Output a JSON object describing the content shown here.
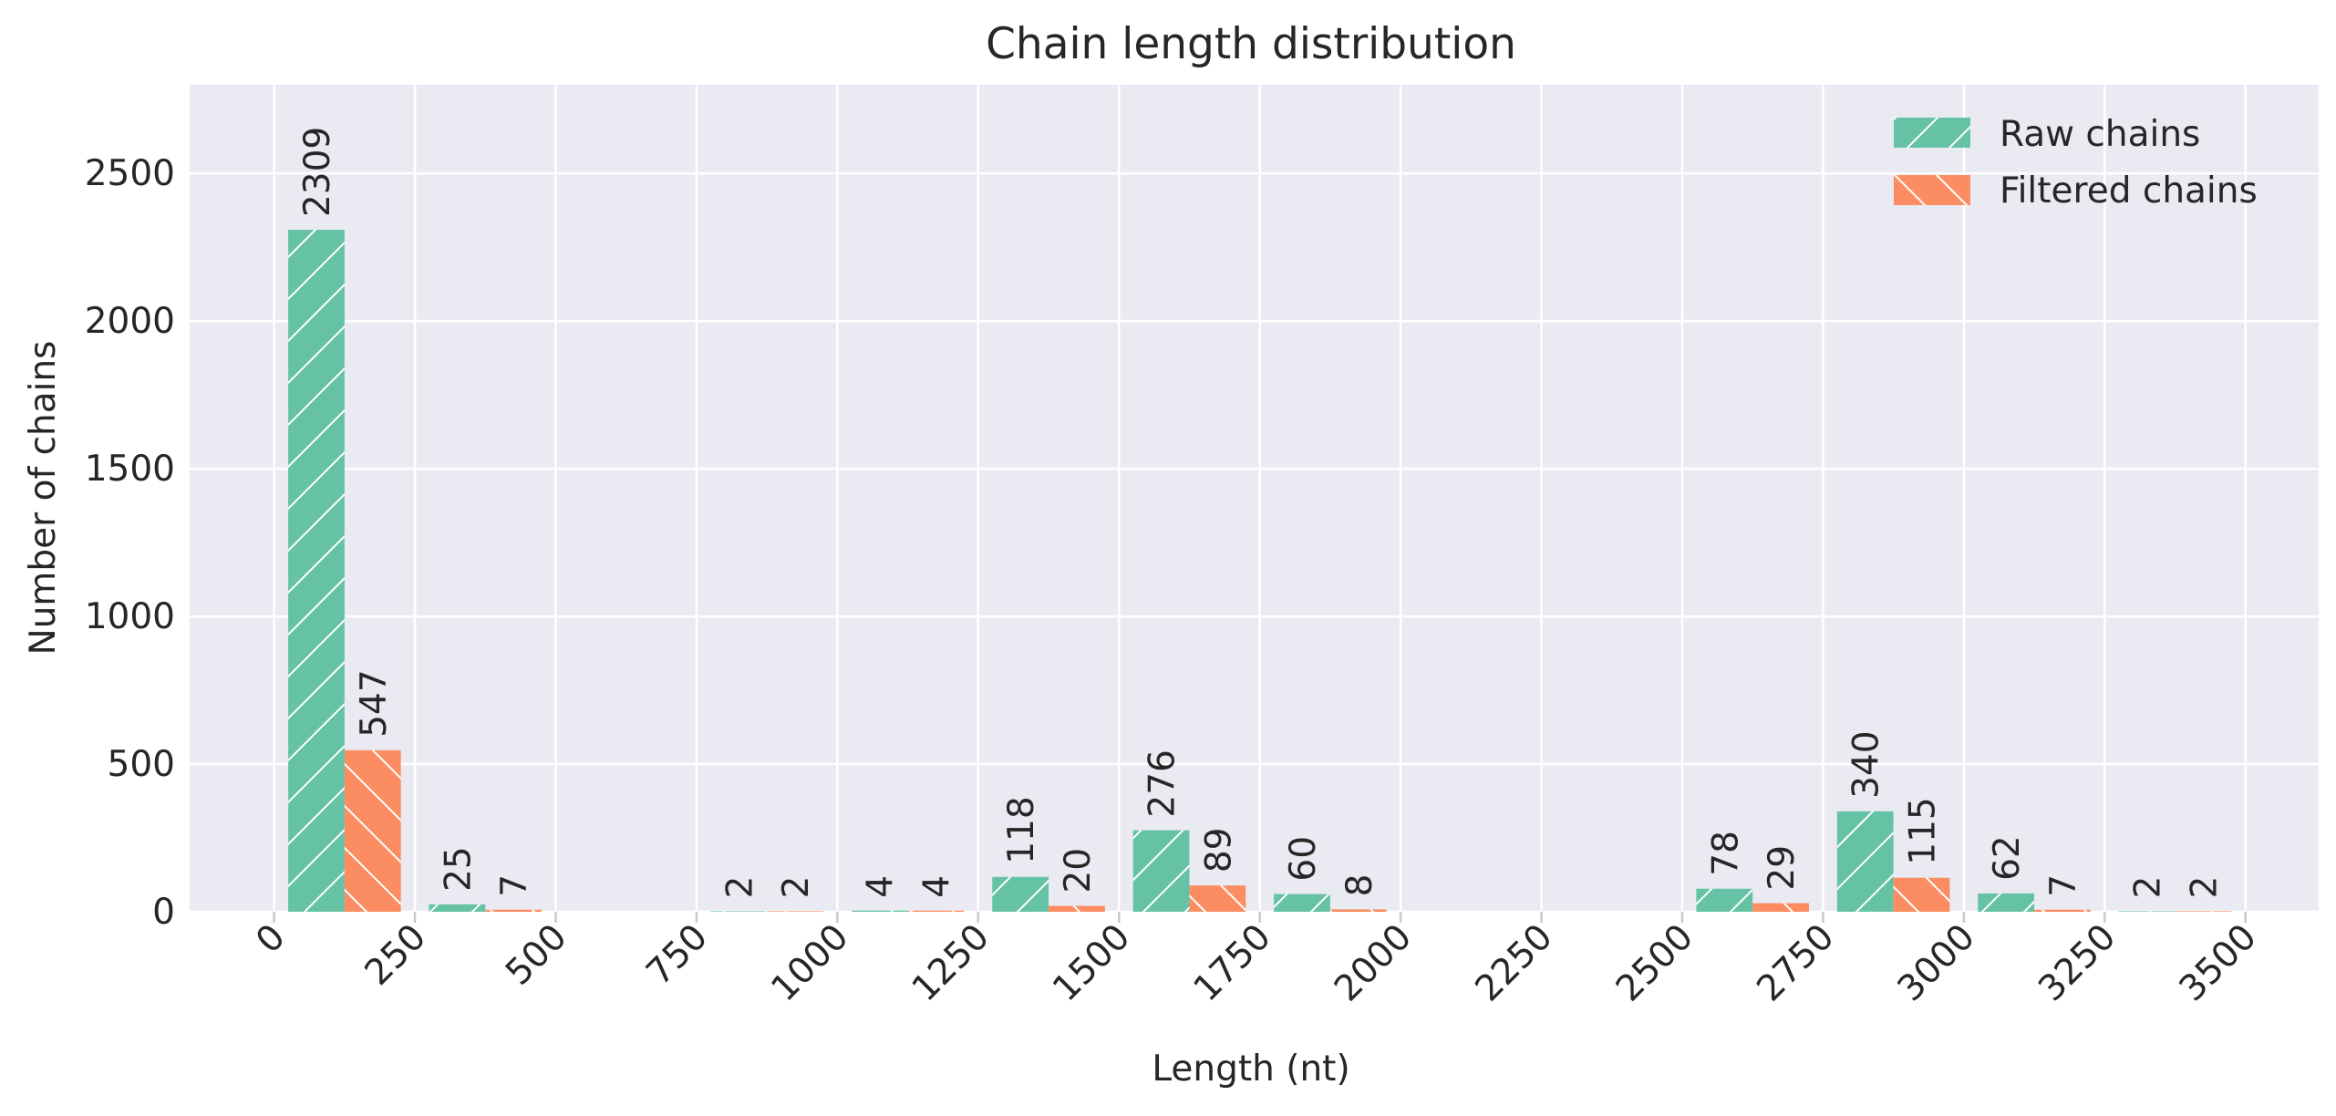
{
  "chart_data": {
    "type": "bar",
    "title": "Chain length distribution",
    "xlabel": "Length (nt)",
    "ylabel": "Number of chains",
    "xlim": [
      -150,
      3630
    ],
    "ylim": [
      0,
      2800
    ],
    "xticks": [
      0,
      250,
      500,
      750,
      1000,
      1250,
      1500,
      1750,
      2000,
      2250,
      2500,
      2750,
      3000,
      3250,
      3500
    ],
    "yticks": [
      0,
      500,
      1000,
      1500,
      2000,
      2500
    ],
    "grid": true,
    "legend_position": "top-right",
    "bin_starts": [
      0,
      250,
      500,
      750,
      1000,
      1250,
      1500,
      1750,
      2000,
      2250,
      2500,
      2750,
      3000,
      3250
    ],
    "bin_width": 250,
    "series": [
      {
        "name": "Raw chains",
        "color": "#66c2a5",
        "hatch": "/",
        "values": [
          2309,
          25,
          0,
          2,
          4,
          118,
          276,
          60,
          0,
          0,
          78,
          340,
          62,
          2
        ]
      },
      {
        "name": "Filtered chains",
        "color": "#fc8d62",
        "hatch": "\\",
        "values": [
          547,
          7,
          0,
          2,
          4,
          20,
          89,
          8,
          0,
          0,
          29,
          115,
          7,
          2
        ]
      }
    ]
  }
}
